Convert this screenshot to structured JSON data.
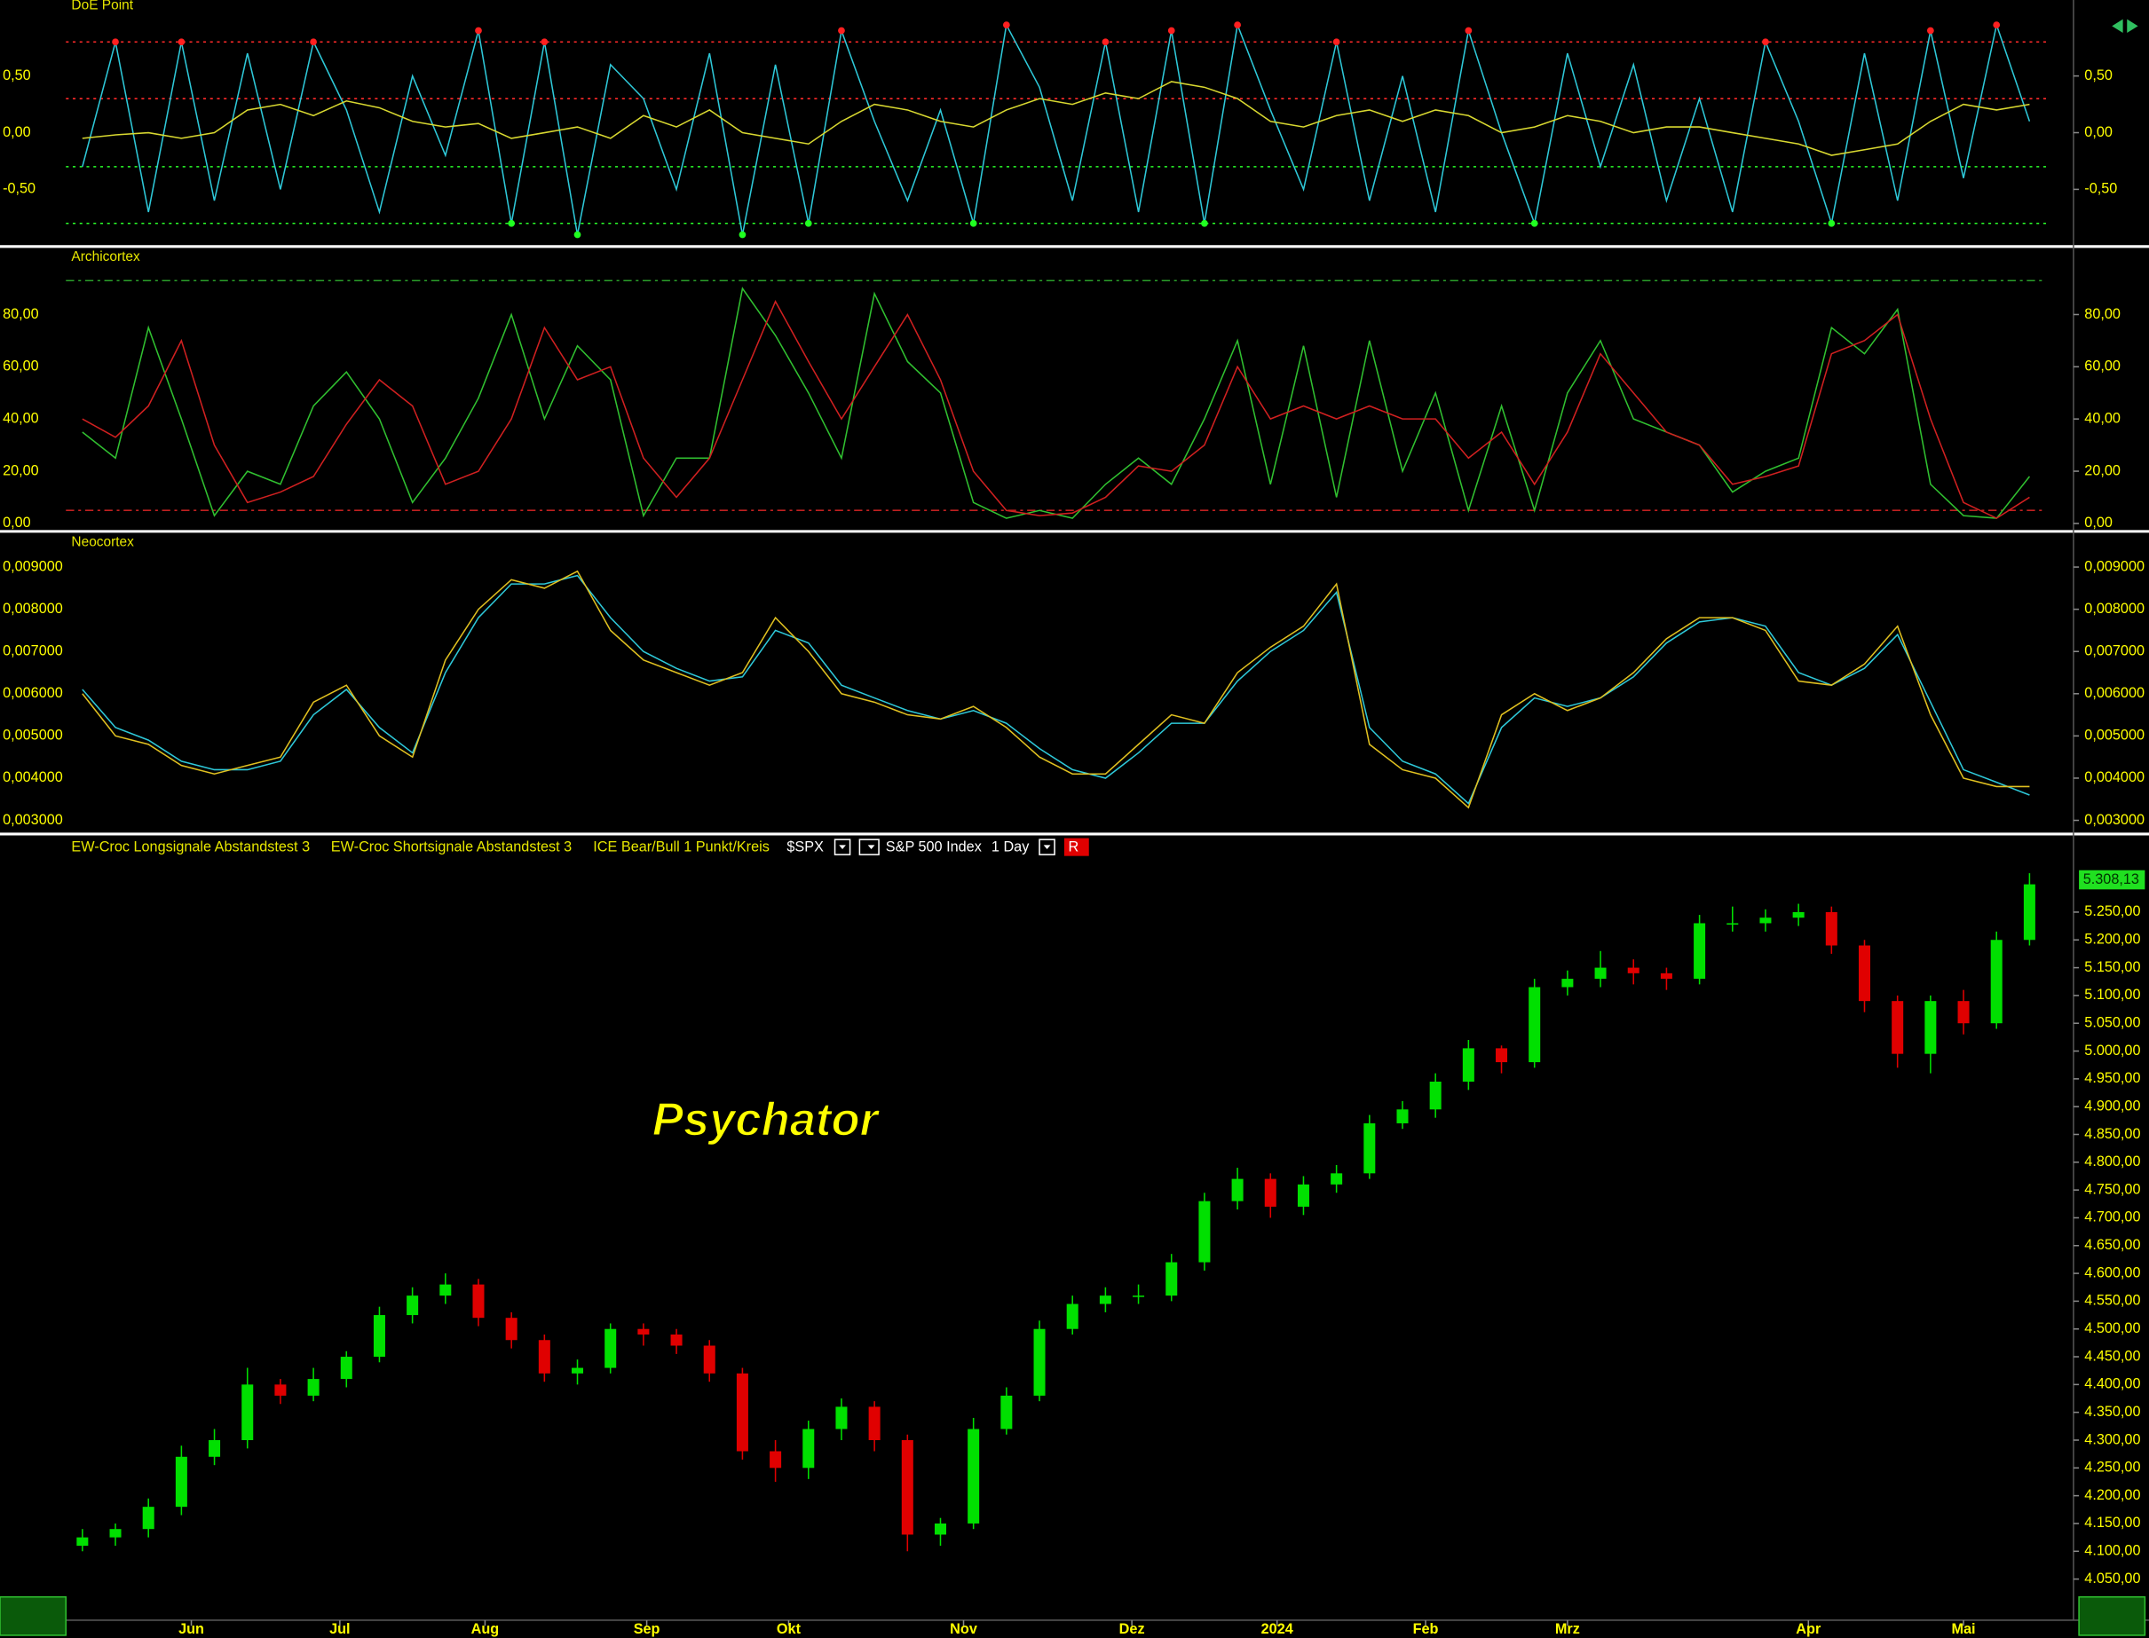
{
  "watermark": "Psychator",
  "toolbar": {
    "items": [
      "EW-Croc Longsignale Abstandstest 3",
      "EW-Croc Shortsignale Abstandstest 3",
      "ICE Bear/Bull 1 Punkt/Kreis"
    ],
    "symbol": "$SPX",
    "name": "S&P 500 Index",
    "interval": "1 Day",
    "button": "R"
  },
  "chart_data": [
    {
      "type": "line",
      "title": "DoE Point",
      "xlim": [
        -0.5,
        59.5
      ],
      "ylim": [
        -0.98,
        1.17
      ],
      "yticks": [
        {
          "value": 0.5,
          "label": "0,50"
        },
        {
          "value": 0,
          "label": "0,00"
        },
        {
          "value": -0.5,
          "label": "-0,50"
        }
      ],
      "levels": [
        {
          "value": 0.8,
          "color": "#ff2a2a",
          "style": "dotted"
        },
        {
          "value": 0.3,
          "color": "#ff2a2a",
          "style": "dotted"
        },
        {
          "value": -0.3,
          "color": "#2aff2a",
          "style": "dotted"
        },
        {
          "value": -0.8,
          "color": "#2aff2a",
          "style": "dotted"
        }
      ],
      "series": [
        {
          "color": "#2ec8d8",
          "markers": true,
          "marker_colors": [
            "#ff2020",
            "#20ff20"
          ],
          "values": [
            -0.3,
            0.8,
            -0.7,
            0.8,
            -0.6,
            0.7,
            -0.5,
            0.8,
            0.2,
            -0.7,
            0.5,
            -0.2,
            0.9,
            -0.8,
            0.8,
            -0.9,
            0.6,
            0.3,
            -0.5,
            0.7,
            -0.9,
            0.6,
            -0.8,
            0.9,
            0.1,
            -0.6,
            0.2,
            -0.8,
            0.95,
            0.4,
            -0.6,
            0.8,
            -0.7,
            0.9,
            -0.8,
            0.95,
            0.2,
            -0.5,
            0.8,
            -0.6,
            0.5,
            -0.7,
            0.9,
            0,
            -0.8,
            0.7,
            -0.3,
            0.6,
            -0.6,
            0.3,
            -0.7,
            0.8,
            0.1,
            -0.8,
            0.7,
            -0.6,
            0.9,
            -0.4,
            0.95,
            0.1
          ]
        },
        {
          "color": "#d8d830",
          "values": [
            -0.05,
            -0.02,
            0,
            -0.05,
            0,
            0.2,
            0.25,
            0.15,
            0.28,
            0.22,
            0.1,
            0.05,
            0.08,
            -0.05,
            0,
            0.05,
            -0.05,
            0.15,
            0.05,
            0.2,
            0,
            -0.05,
            -0.1,
            0.1,
            0.25,
            0.2,
            0.1,
            0.05,
            0.2,
            0.3,
            0.25,
            0.35,
            0.3,
            0.45,
            0.4,
            0.3,
            0.1,
            0.05,
            0.15,
            0.2,
            0.1,
            0.2,
            0.15,
            0,
            0.05,
            0.15,
            0.1,
            0,
            0.05,
            0.05,
            0,
            -0.05,
            -0.1,
            -0.2,
            -0.15,
            -0.1,
            0.1,
            0.25,
            0.2,
            0.25
          ]
        }
      ]
    },
    {
      "type": "line",
      "title": "Archicortex",
      "xlim": [
        -0.5,
        59.5
      ],
      "ylim": [
        -2,
        105
      ],
      "yticks": [
        {
          "value": 0,
          "label": "0,00"
        },
        {
          "value": 20,
          "label": "20,00"
        },
        {
          "value": 40,
          "label": "40,00"
        },
        {
          "value": 60,
          "label": "60,00"
        },
        {
          "value": 80,
          "label": "80,00"
        }
      ],
      "levels": [
        {
          "value": 93,
          "color": "#2aa02a",
          "style": "dashdot"
        },
        {
          "value": 5,
          "color": "#c02020",
          "style": "dashdot"
        }
      ],
      "series": [
        {
          "color": "#30c030",
          "values": [
            35,
            25,
            75,
            40,
            3,
            20,
            15,
            45,
            58,
            40,
            8,
            25,
            48,
            80,
            40,
            68,
            55,
            3,
            25,
            25,
            90,
            72,
            50,
            25,
            88,
            62,
            50,
            8,
            2,
            5,
            2,
            15,
            25,
            15,
            40,
            70,
            15,
            68,
            10,
            70,
            20,
            50,
            5,
            45,
            5,
            50,
            70,
            40,
            35,
            30,
            12,
            20,
            25,
            75,
            65,
            82,
            15,
            3,
            2,
            18
          ]
        },
        {
          "color": "#d02020",
          "values": [
            40,
            33,
            45,
            70,
            30,
            8,
            12,
            18,
            38,
            55,
            45,
            15,
            20,
            40,
            75,
            55,
            60,
            25,
            10,
            25,
            55,
            85,
            62,
            40,
            60,
            80,
            55,
            20,
            5,
            3,
            4,
            10,
            22,
            20,
            30,
            60,
            40,
            45,
            40,
            45,
            40,
            40,
            25,
            35,
            15,
            35,
            65,
            50,
            35,
            30,
            15,
            18,
            22,
            65,
            70,
            80,
            40,
            8,
            2,
            10
          ]
        }
      ]
    },
    {
      "type": "line",
      "title": "Neocortex",
      "xlim": [
        -0.5,
        59.5
      ],
      "ylim": [
        0.00274,
        0.00978
      ],
      "yticks": [
        {
          "value": 0.003,
          "label": "0,003000"
        },
        {
          "value": 0.004,
          "label": "0,004000"
        },
        {
          "value": 0.005,
          "label": "0,005000"
        },
        {
          "value": 0.006,
          "label": "0,006000"
        },
        {
          "value": 0.007,
          "label": "0,007000"
        },
        {
          "value": 0.008,
          "label": "0,008000"
        },
        {
          "value": 0.009,
          "label": "0,009000"
        }
      ],
      "series": [
        {
          "color": "#2ec8d8",
          "values": [
            0.0061,
            0.0052,
            0.0049,
            0.0044,
            0.0042,
            0.0042,
            0.0044,
            0.0055,
            0.0061,
            0.0052,
            0.0046,
            0.0065,
            0.0078,
            0.0086,
            0.0086,
            0.0088,
            0.0078,
            0.007,
            0.0066,
            0.0063,
            0.0064,
            0.0075,
            0.0072,
            0.0062,
            0.0059,
            0.0056,
            0.0054,
            0.0056,
            0.0053,
            0.0047,
            0.0042,
            0.004,
            0.0046,
            0.0053,
            0.0053,
            0.0063,
            0.007,
            0.0075,
            0.0084,
            0.0052,
            0.0044,
            0.0041,
            0.0034,
            0.0052,
            0.0059,
            0.0057,
            0.0059,
            0.0064,
            0.0072,
            0.0077,
            0.0078,
            0.0076,
            0.0065,
            0.0062,
            0.0066,
            0.0074,
            0.0058,
            0.0042,
            0.0039,
            0.0036
          ]
        },
        {
          "color": "#e0c020",
          "values": [
            0.006,
            0.005,
            0.0048,
            0.0043,
            0.0041,
            0.0043,
            0.0045,
            0.0058,
            0.0062,
            0.005,
            0.0045,
            0.0068,
            0.008,
            0.0087,
            0.0085,
            0.0089,
            0.0075,
            0.0068,
            0.0065,
            0.0062,
            0.0065,
            0.0078,
            0.007,
            0.006,
            0.0058,
            0.0055,
            0.0054,
            0.0057,
            0.0052,
            0.0045,
            0.0041,
            0.0041,
            0.0048,
            0.0055,
            0.0053,
            0.0065,
            0.0071,
            0.0076,
            0.0086,
            0.0048,
            0.0042,
            0.004,
            0.0033,
            0.0055,
            0.006,
            0.0056,
            0.0059,
            0.0065,
            0.0073,
            0.0078,
            0.0078,
            0.0075,
            0.0063,
            0.0062,
            0.0067,
            0.0076,
            0.0055,
            0.004,
            0.0038,
            0.0038
          ]
        }
      ]
    },
    {
      "type": "candlestick",
      "xlim": [
        -0.5,
        59.5
      ],
      "ylim": [
        3976,
        5351
      ],
      "up_color": "#00e000",
      "down_color": "#e00000",
      "xticks": [
        {
          "value": 3.3,
          "label": "Jun"
        },
        {
          "value": 7.8,
          "label": "Jul"
        },
        {
          "value": 12.2,
          "label": "Aug"
        },
        {
          "value": 17.1,
          "label": "Sep"
        },
        {
          "value": 21.4,
          "label": "Okt"
        },
        {
          "value": 26.7,
          "label": "Nov"
        },
        {
          "value": 31.8,
          "label": "Dez"
        },
        {
          "value": 36.2,
          "label": "2024"
        },
        {
          "value": 40.7,
          "label": "Feb"
        },
        {
          "value": 45,
          "label": "Mrz"
        },
        {
          "value": 52.3,
          "label": "Apr"
        },
        {
          "value": 57,
          "label": "Mai"
        }
      ],
      "yticks": [
        {
          "value": 4050,
          "label": "4.050,00"
        },
        {
          "value": 4100,
          "label": "4.100,00"
        },
        {
          "value": 4150,
          "label": "4.150,00"
        },
        {
          "value": 4200,
          "label": "4.200,00"
        },
        {
          "value": 4250,
          "label": "4.250,00"
        },
        {
          "value": 4300,
          "label": "4.300,00"
        },
        {
          "value": 4350,
          "label": "4.350,00"
        },
        {
          "value": 4400,
          "label": "4.400,00"
        },
        {
          "value": 4450,
          "label": "4.450,00"
        },
        {
          "value": 4500,
          "label": "4.500,00"
        },
        {
          "value": 4550,
          "label": "4.550,00"
        },
        {
          "value": 4600,
          "label": "4.600,00"
        },
        {
          "value": 4650,
          "label": "4.650,00"
        },
        {
          "value": 4700,
          "label": "4.700,00"
        },
        {
          "value": 4750,
          "label": "4.750,00"
        },
        {
          "value": 4800,
          "label": "4.800,00"
        },
        {
          "value": 4850,
          "label": "4.850,00"
        },
        {
          "value": 4900,
          "label": "4.900,00"
        },
        {
          "value": 4950,
          "label": "4.950,00"
        },
        {
          "value": 5000,
          "label": "5.000,00"
        },
        {
          "value": 5050,
          "label": "5.050,00"
        },
        {
          "value": 5100,
          "label": "5.100,00"
        },
        {
          "value": 5150,
          "label": "5.150,00"
        },
        {
          "value": 5200,
          "label": "5.200,00"
        },
        {
          "value": 5250,
          "label": "5.250,00"
        }
      ],
      "last": {
        "value": 5308.13,
        "label": "5.308,13"
      },
      "open": [
        4110,
        4125,
        4140,
        4180,
        4270,
        4300,
        4400,
        4380,
        4410,
        4450,
        4525,
        4560,
        4580,
        4520,
        4480,
        4420,
        4430,
        4500,
        4490,
        4470,
        4420,
        4280,
        4250,
        4320,
        4360,
        4300,
        4130,
        4150,
        4320,
        4380,
        4500,
        4545,
        4560,
        4560,
        4620,
        4730,
        4770,
        4720,
        4760,
        4780,
        4870,
        4895,
        4945,
        5005,
        4980,
        5115,
        5130,
        5150,
        5140,
        5130,
        5230,
        5230,
        5240,
        5250,
        5190,
        5090,
        4995,
        5090,
        5050,
        5200
      ],
      "high": [
        4140,
        4150,
        4195,
        4290,
        4320,
        4430,
        4410,
        4430,
        4460,
        4540,
        4575,
        4600,
        4590,
        4530,
        4490,
        4445,
        4510,
        4510,
        4500,
        4480,
        4430,
        4300,
        4335,
        4375,
        4370,
        4310,
        4160,
        4340,
        4395,
        4515,
        4560,
        4575,
        4580,
        4635,
        4745,
        4790,
        4780,
        4775,
        4795,
        4885,
        4910,
        4960,
        5020,
        5010,
        5130,
        5145,
        5180,
        5165,
        5150,
        5245,
        5260,
        5255,
        5265,
        5260,
        5200,
        5100,
        5100,
        5110,
        5215,
        5320
      ],
      "low": [
        4100,
        4110,
        4125,
        4165,
        4255,
        4285,
        4365,
        4370,
        4395,
        4440,
        4510,
        4545,
        4505,
        4465,
        4405,
        4400,
        4420,
        4470,
        4455,
        4405,
        4265,
        4225,
        4230,
        4300,
        4280,
        4100,
        4110,
        4140,
        4310,
        4370,
        4490,
        4530,
        4545,
        4550,
        4605,
        4715,
        4700,
        4705,
        4745,
        4770,
        4860,
        4880,
        4930,
        4960,
        4970,
        5100,
        5115,
        5120,
        5110,
        5120,
        5215,
        5215,
        5225,
        5175,
        5070,
        4970,
        4960,
        5030,
        5040,
        5190
      ],
      "close": [
        4125,
        4140,
        4180,
        4270,
        4300,
        4400,
        4380,
        4410,
        4450,
        4525,
        4560,
        4580,
        4520,
        4480,
        4420,
        4430,
        4500,
        4490,
        4470,
        4420,
        4280,
        4250,
        4320,
        4360,
        4300,
        4130,
        4150,
        4320,
        4380,
        4500,
        4545,
        4560,
        4560,
        4620,
        4730,
        4770,
        4720,
        4760,
        4780,
        4870,
        4895,
        4945,
        5005,
        4980,
        5115,
        5130,
        5150,
        5140,
        5130,
        5230,
        5230,
        5240,
        5250,
        5190,
        5090,
        4995,
        5090,
        5050,
        5200,
        5300
      ]
    }
  ]
}
